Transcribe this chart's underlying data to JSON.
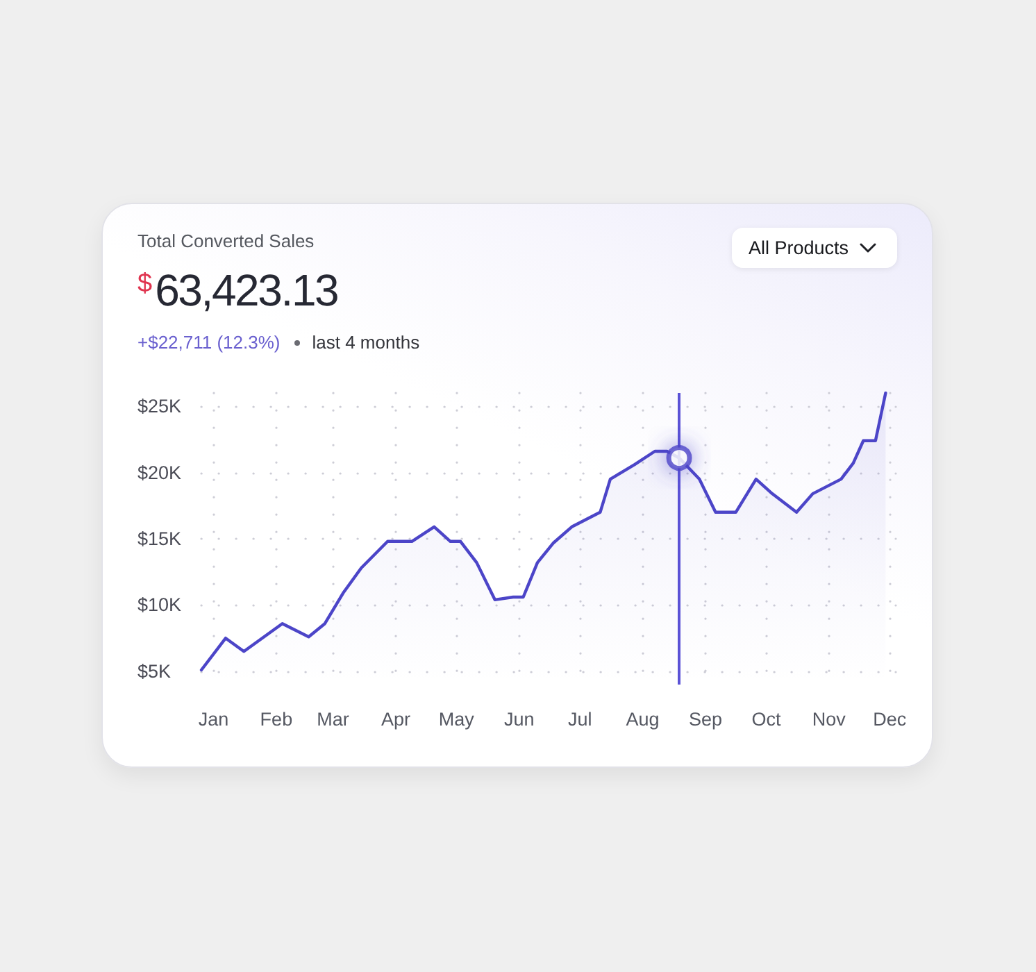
{
  "chart_data": {
    "type": "area",
    "title": "Total Converted Sales",
    "subtitle": "$63,423.13",
    "annotations": [
      "+$22,711 (12.3%)",
      "last 4 months",
      "All Products"
    ],
    "xlim": [
      "--01-09",
      "--12-18"
    ],
    "xticks": [
      {
        "value": "--01-15",
        "label": "Jan"
      },
      {
        "value": "--02-15",
        "label": "Feb"
      },
      {
        "value": "--03-15",
        "label": "Mar"
      },
      {
        "value": "--04-15",
        "label": "Apr"
      },
      {
        "value": "--05-15",
        "label": "May"
      },
      {
        "value": "--06-15",
        "label": "Jun"
      },
      {
        "value": "--07-15",
        "label": "Jul"
      },
      {
        "value": "--08-15",
        "label": "Aug"
      },
      {
        "value": "--09-15",
        "label": "Sep"
      },
      {
        "value": "--10-15",
        "label": "Oct"
      },
      {
        "value": "--11-15",
        "label": "Nov"
      },
      {
        "value": "--12-15",
        "label": "Dec"
      }
    ],
    "ylim": [
      4000,
      26000
    ],
    "yticks": [
      {
        "value": 5000,
        "label": "$5K"
      },
      {
        "value": 10000,
        "label": "$10K"
      },
      {
        "value": 15000,
        "label": "$15K"
      },
      {
        "value": 20000,
        "label": "$20K"
      },
      {
        "value": 25000,
        "label": "$25K"
      }
    ],
    "grid": true,
    "marker": "none",
    "series": [
      {
        "color": "#4c45c8",
        "x": [
          "--01-09",
          "--01-21",
          "--01-30",
          "--02-18",
          "--03-03",
          "--03-11",
          "--03-20",
          "--03-29",
          "--04-11",
          "--04-23",
          "--05-04",
          "--05-12",
          "--05-17",
          "--05-25",
          "--06-03",
          "--06-12",
          "--06-17",
          "--06-24",
          "--07-02",
          "--07-11",
          "--07-25",
          "--07-30",
          "--08-11",
          "--08-21",
          "--08-27",
          "--09-02",
          "--09-12",
          "--09-20",
          "--09-30",
          "--10-10",
          "--10-18",
          "--10-30",
          "--11-07",
          "--11-21",
          "--11-27",
          "--12-02",
          "--12-08",
          "--12-13"
        ],
        "values": [
          5100,
          7500,
          6500,
          8600,
          7600,
          8600,
          10900,
          12800,
          14800,
          14800,
          15900,
          14800,
          14800,
          13200,
          10400,
          10600,
          10600,
          13200,
          14700,
          15900,
          17000,
          19500,
          20600,
          21600,
          21600,
          21100,
          19500,
          17000,
          17000,
          19500,
          18400,
          17000,
          18400,
          19500,
          20700,
          22400,
          22400,
          26000
        ]
      },
      {
        "type": "scatter",
        "color": "#4c45c8",
        "marker": "circle",
        "x": [
          "--09-02"
        ],
        "values": [
          21100
        ]
      }
    ],
    "ref_lines": [
      {
        "axis": "x",
        "value": "--09-02",
        "color": "#5b52d6"
      }
    ]
  }
}
